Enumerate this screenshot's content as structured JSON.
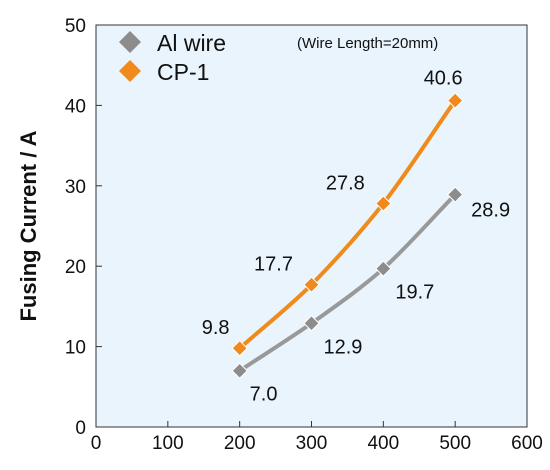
{
  "chart_data": {
    "type": "line",
    "title": "",
    "xlabel": "",
    "ylabel": "Fusing Current / A",
    "annotation": "(Wire Length=20mm)",
    "xlim": [
      0,
      600
    ],
    "ylim": [
      0,
      50
    ],
    "xticks": [
      0,
      100,
      200,
      300,
      400,
      500,
      600
    ],
    "yticks": [
      0,
      10,
      20,
      30,
      40,
      50
    ],
    "grid": false,
    "legend_position": "top-left",
    "background_color": "#e9f4fc",
    "series": [
      {
        "name": "Al wire",
        "color": "#999999",
        "marker_color": "#8c8c8c",
        "x": [
          200,
          300,
          400,
          500
        ],
        "values": [
          7.0,
          12.9,
          19.7,
          28.9
        ],
        "labels": [
          "7.0",
          "12.9",
          "19.7",
          "28.9"
        ]
      },
      {
        "name": "CP-1",
        "color": "#f08a1c",
        "marker_color": "#f08a1c",
        "x": [
          200,
          300,
          400,
          500
        ],
        "values": [
          9.8,
          17.7,
          27.8,
          40.6
        ],
        "labels": [
          "9.8",
          "17.7",
          "27.8",
          "40.6"
        ]
      }
    ]
  }
}
